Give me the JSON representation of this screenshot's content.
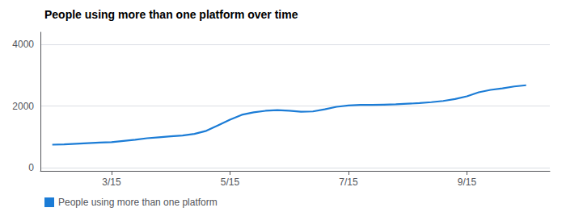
{
  "chart_data": {
    "type": "line",
    "title": "People using more than one platform over time",
    "x": [
      0,
      1,
      2,
      3,
      4,
      5,
      6,
      7,
      8,
      9,
      10,
      11,
      12,
      13,
      14,
      15,
      16,
      17,
      18,
      19,
      20,
      21,
      22,
      23,
      24,
      25,
      26,
      27,
      28,
      29,
      30,
      31,
      32,
      33,
      34,
      35,
      36,
      37,
      38,
      39,
      40
    ],
    "series": [
      {
        "name": "People using more than one platform",
        "color": "#1b7cd6",
        "values": [
          750,
          760,
          780,
          800,
          820,
          830,
          870,
          910,
          960,
          990,
          1020,
          1050,
          1100,
          1200,
          1380,
          1560,
          1720,
          1800,
          1850,
          1870,
          1850,
          1820,
          1830,
          1900,
          1980,
          2020,
          2040,
          2040,
          2050,
          2060,
          2080,
          2100,
          2130,
          2170,
          2230,
          2320,
          2450,
          2530,
          2580,
          2640,
          2680
        ]
      }
    ],
    "xlim": [
      -1,
      42
    ],
    "xticks": [
      {
        "value": 5,
        "label": "3/15"
      },
      {
        "value": 15,
        "label": "5/15"
      },
      {
        "value": 25,
        "label": "7/15"
      },
      {
        "value": 35,
        "label": "9/15"
      }
    ],
    "ylim": [
      -100,
      4400
    ],
    "yticks": [
      0,
      2000,
      4000
    ],
    "grid": true,
    "legend": "lower left"
  }
}
